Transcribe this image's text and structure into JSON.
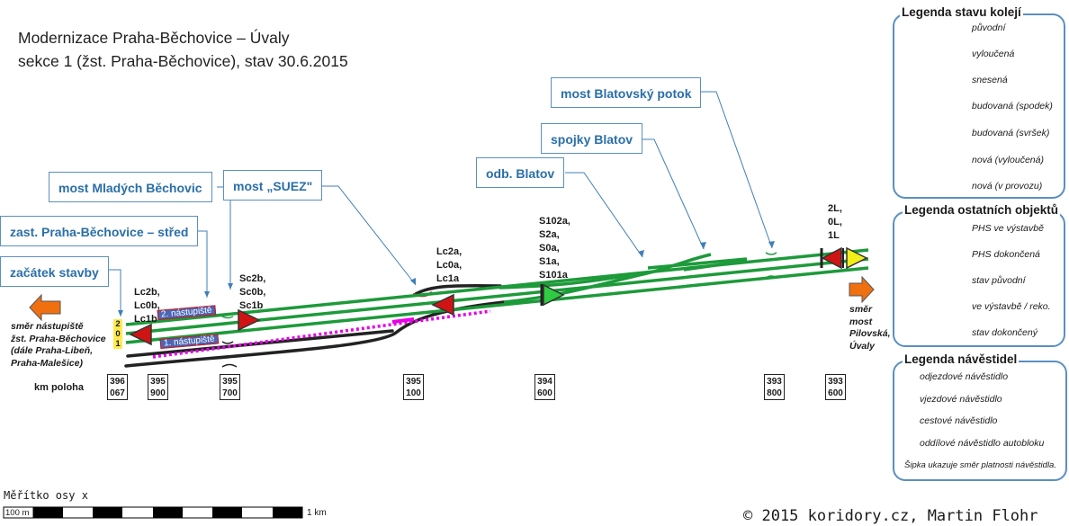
{
  "title": {
    "line1": "Modernizace Praha-Běchovice – Úvaly",
    "line2": "sekce 1 (žst. Praha-Běchovice), stav 30.6.2015"
  },
  "callouts": [
    {
      "id": "most-blatovsky-potok",
      "label": "most Blatovský potok"
    },
    {
      "id": "spojky-blatov",
      "label": "spojky Blatov"
    },
    {
      "id": "odb-blatov",
      "label": "odb. Blatov"
    },
    {
      "id": "most-suez",
      "label": "most „SUEZ\""
    },
    {
      "id": "most-mladych-bechovic",
      "label": "most Mladých Běchovic"
    },
    {
      "id": "zast-praha-bechovice-stred",
      "label": "zast. Praha-Běchovice – střed"
    },
    {
      "id": "zacatek-stavby",
      "label": "začátek stavby"
    }
  ],
  "signals": {
    "group_1": "Lc2b,\nLc0b,\nLc1b",
    "group_2": "Sc2b,\nSc0b,\nSc1b",
    "group_3": "Lc2a,\nLc0a,\nLc1a",
    "group_4": "S102a,\nS2a,\nS0a,\nS1a,\nS101a",
    "group_5": "2L,\n0L,\n1L"
  },
  "platforms": {
    "upper": "2. nástupiště",
    "lower": "1. nástupiště"
  },
  "track_numbers": [
    "2",
    "0",
    "1"
  ],
  "directions": {
    "left": "směr nástupiště\nžst. Praha-Běchovice\n(dále Praha-Libeň,\nPraha-Malešice)",
    "right": "směr\nmost\nPilovská,\nÚvaly"
  },
  "km": {
    "label": "km poloha",
    "posts": [
      {
        "line1": "396",
        "line2": "067"
      },
      {
        "line1": "395",
        "line2": "900"
      },
      {
        "line1": "395",
        "line2": "700"
      },
      {
        "line1": "395",
        "line2": "100"
      },
      {
        "line1": "394",
        "line2": "600"
      },
      {
        "line1": "393",
        "line2": "800"
      },
      {
        "line1": "393",
        "line2": "600"
      }
    ]
  },
  "legend_tracks": {
    "title": "Legenda stavu kolejí",
    "items": [
      {
        "label": "původní",
        "color": "#222222",
        "style": "solid"
      },
      {
        "label": "vyloučená",
        "color": "#e01010",
        "style": "solid"
      },
      {
        "label": "snesená",
        "color": "#e01010",
        "style": "dotted"
      },
      {
        "label": "budovaná (spodek)",
        "color": "#1d9a3a",
        "style": "dotted"
      },
      {
        "label": "budovaná (svršek)",
        "color": "#1d9a3a",
        "style": "dashed"
      },
      {
        "label": "nová (vyloučená)",
        "color": "#1d9a3a",
        "style": "dashdot"
      },
      {
        "label": "nová (v provozu)",
        "color": "#1d9a3a",
        "style": "solid"
      }
    ]
  },
  "legend_objects": {
    "title": "Legenda ostatních objektů",
    "items": [
      {
        "label": "PHS ve výstavbě",
        "color": "#e600e6",
        "style": "dotted"
      },
      {
        "label": "PHS dokončená",
        "color": "#e600e6",
        "style": "solid"
      },
      {
        "label": "stav původní",
        "color": "#000000",
        "style": "short"
      },
      {
        "label": "ve výstavbě / reko.",
        "color": "#e01010",
        "style": "short"
      },
      {
        "label": "stav dokončený",
        "color": "#1d9a3a",
        "style": "short"
      }
    ]
  },
  "legend_signals": {
    "title": "Legenda návěstidel",
    "items": [
      {
        "label": "odjezdové návěstidlo",
        "fill": "#2ecc40",
        "bar": true
      },
      {
        "label": "vjezdové návěstidlo",
        "fill": "#d01414",
        "bar": true
      },
      {
        "label": "cestové návěstidlo",
        "fill": "#d01414",
        "bar": false
      },
      {
        "label": "oddílové návěstidlo autobloku",
        "fill": "#f2ee1a",
        "bar": false
      }
    ],
    "note": "Šipka ukazuje směr platnosti návěstidla."
  },
  "scale": {
    "title": "Měřítko osy x",
    "start": "100 m",
    "end": "1 km"
  },
  "copyright": "© 2015 koridory.cz, Martin Flohr"
}
